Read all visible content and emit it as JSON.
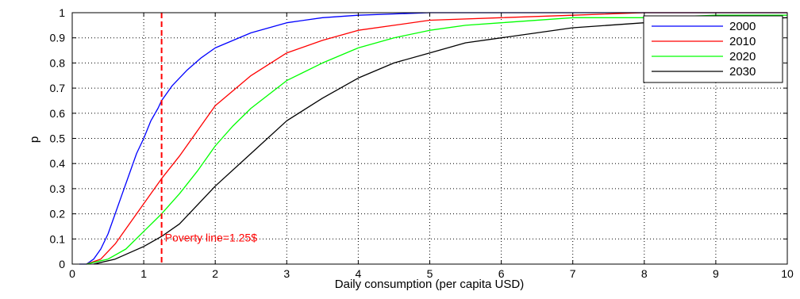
{
  "chart_data": {
    "type": "line",
    "title": "",
    "xlabel": "Daily consumption (per capita USD)",
    "ylabel": "p",
    "xlim": [
      0,
      10
    ],
    "ylim": [
      0,
      1
    ],
    "xticks": [
      "0",
      "1",
      "2",
      "3",
      "4",
      "5",
      "6",
      "7",
      "8",
      "9",
      "10"
    ],
    "yticks": [
      "0",
      "0.1",
      "0.2",
      "0.3",
      "0.4",
      "0.5",
      "0.6",
      "0.7",
      "0.8",
      "0.9",
      "1"
    ],
    "grid": "dotted",
    "legend_position": "top-right",
    "series": [
      {
        "name": "2000",
        "color": "#0000ff",
        "x": [
          0.1,
          0.2,
          0.3,
          0.4,
          0.5,
          0.6,
          0.7,
          0.8,
          0.9,
          1.0,
          1.1,
          1.2,
          1.25,
          1.4,
          1.6,
          1.8,
          2.0,
          2.5,
          3.0,
          3.5,
          4.0,
          5.0,
          6.0,
          7.0,
          8.0,
          10.0
        ],
        "y": [
          0.0,
          0.0,
          0.02,
          0.06,
          0.12,
          0.2,
          0.28,
          0.36,
          0.44,
          0.5,
          0.57,
          0.62,
          0.65,
          0.71,
          0.77,
          0.82,
          0.86,
          0.92,
          0.96,
          0.98,
          0.99,
          1.0,
          1.0,
          1.0,
          1.0,
          1.0
        ]
      },
      {
        "name": "2010",
        "color": "#ff0000",
        "x": [
          0.2,
          0.4,
          0.6,
          0.8,
          1.0,
          1.25,
          1.5,
          1.8,
          2.0,
          2.5,
          3.0,
          3.5,
          4.0,
          4.5,
          5.0,
          6.0,
          7.0,
          8.0,
          9.0,
          10.0
        ],
        "y": [
          0.0,
          0.02,
          0.08,
          0.16,
          0.24,
          0.34,
          0.43,
          0.55,
          0.63,
          0.75,
          0.84,
          0.89,
          0.93,
          0.95,
          0.97,
          0.98,
          0.99,
          1.0,
          1.0,
          1.0
        ]
      },
      {
        "name": "2020",
        "color": "#00ff00",
        "x": [
          0.2,
          0.5,
          0.75,
          1.0,
          1.25,
          1.5,
          1.75,
          2.0,
          2.25,
          2.5,
          3.0,
          3.5,
          4.0,
          4.5,
          5.0,
          5.5,
          6.0,
          7.0,
          8.0,
          9.0,
          10.0
        ],
        "y": [
          0.0,
          0.02,
          0.06,
          0.13,
          0.2,
          0.28,
          0.37,
          0.47,
          0.55,
          0.62,
          0.73,
          0.8,
          0.86,
          0.9,
          0.93,
          0.95,
          0.96,
          0.98,
          0.98,
          0.99,
          0.99
        ]
      },
      {
        "name": "2030",
        "color": "#000000",
        "x": [
          0.3,
          0.6,
          1.0,
          1.25,
          1.5,
          2.0,
          2.5,
          3.0,
          3.5,
          4.0,
          4.5,
          5.0,
          5.5,
          6.0,
          7.0,
          8.0,
          9.0,
          10.0
        ],
        "y": [
          0.0,
          0.02,
          0.07,
          0.11,
          0.16,
          0.31,
          0.44,
          0.57,
          0.66,
          0.74,
          0.8,
          0.84,
          0.88,
          0.9,
          0.94,
          0.96,
          0.97,
          0.98
        ]
      }
    ],
    "annotations": [
      {
        "label": "Poverty line=1.25$",
        "x": 1.25,
        "y": 0.1,
        "style": "dashed-vertical-line",
        "color": "#ff0000"
      }
    ]
  }
}
